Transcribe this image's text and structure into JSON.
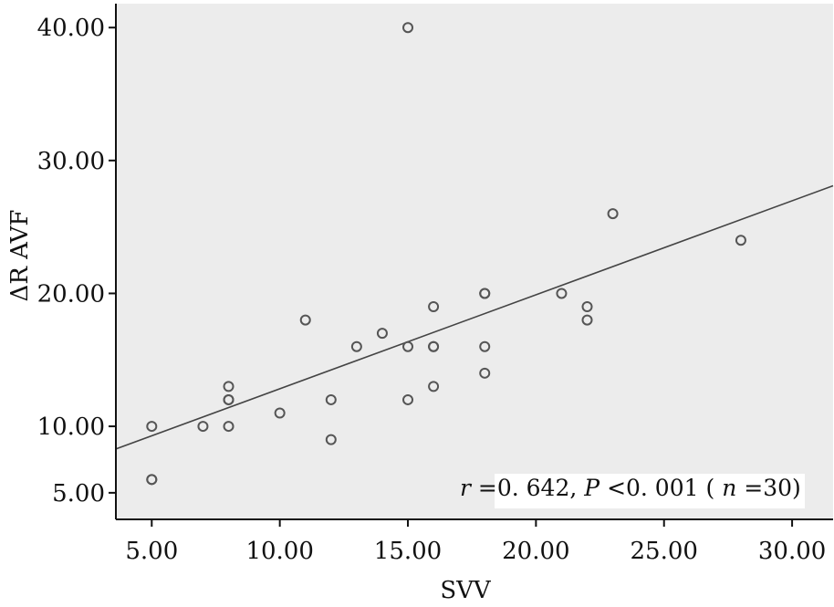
{
  "chart_data": {
    "type": "scatter",
    "title": "",
    "xlabel": "SVV",
    "ylabel": "ΔR AVF",
    "xlim": [
      3.6,
      31.6
    ],
    "ylim": [
      3.0,
      41.8
    ],
    "x_ticks": [
      "5.00",
      "10.00",
      "15.00",
      "20.00",
      "25.00",
      "30.00"
    ],
    "y_ticks": [
      "5.00",
      "10.00",
      "20.00",
      "30.00",
      "40.00"
    ],
    "x_tick_values": [
      5,
      10,
      15,
      20,
      25,
      30
    ],
    "y_tick_values": [
      5,
      10,
      20,
      30,
      40
    ],
    "grid": false,
    "background": "#ececec",
    "marker_color": "#555555",
    "line_color": "#444444",
    "points": [
      {
        "x": 5,
        "y": 10
      },
      {
        "x": 5,
        "y": 6
      },
      {
        "x": 5,
        "y": 6
      },
      {
        "x": 7,
        "y": 10
      },
      {
        "x": 8,
        "y": 13
      },
      {
        "x": 8,
        "y": 12
      },
      {
        "x": 8,
        "y": 12
      },
      {
        "x": 8,
        "y": 10
      },
      {
        "x": 10,
        "y": 11
      },
      {
        "x": 11,
        "y": 18
      },
      {
        "x": 12,
        "y": 12
      },
      {
        "x": 12,
        "y": 9
      },
      {
        "x": 13,
        "y": 16
      },
      {
        "x": 14,
        "y": 17
      },
      {
        "x": 15,
        "y": 40
      },
      {
        "x": 15,
        "y": 16
      },
      {
        "x": 15,
        "y": 12
      },
      {
        "x": 16,
        "y": 19
      },
      {
        "x": 16,
        "y": 16
      },
      {
        "x": 16,
        "y": 16
      },
      {
        "x": 16,
        "y": 13
      },
      {
        "x": 18,
        "y": 20
      },
      {
        "x": 18,
        "y": 20
      },
      {
        "x": 18,
        "y": 16
      },
      {
        "x": 18,
        "y": 14
      },
      {
        "x": 21,
        "y": 20
      },
      {
        "x": 22,
        "y": 19
      },
      {
        "x": 22,
        "y": 18
      },
      {
        "x": 23,
        "y": 26
      },
      {
        "x": 28,
        "y": 24
      }
    ],
    "fit_line": {
      "x": [
        3.6,
        31.6
      ],
      "y": [
        8.3,
        28.1
      ]
    },
    "annotation": {
      "r_sym": "r",
      "r_text": "=0. 642,",
      "p_sym": "P",
      "p_text": "<0. 001 (",
      "n_sym": "n",
      "n_text": "=30)"
    }
  }
}
